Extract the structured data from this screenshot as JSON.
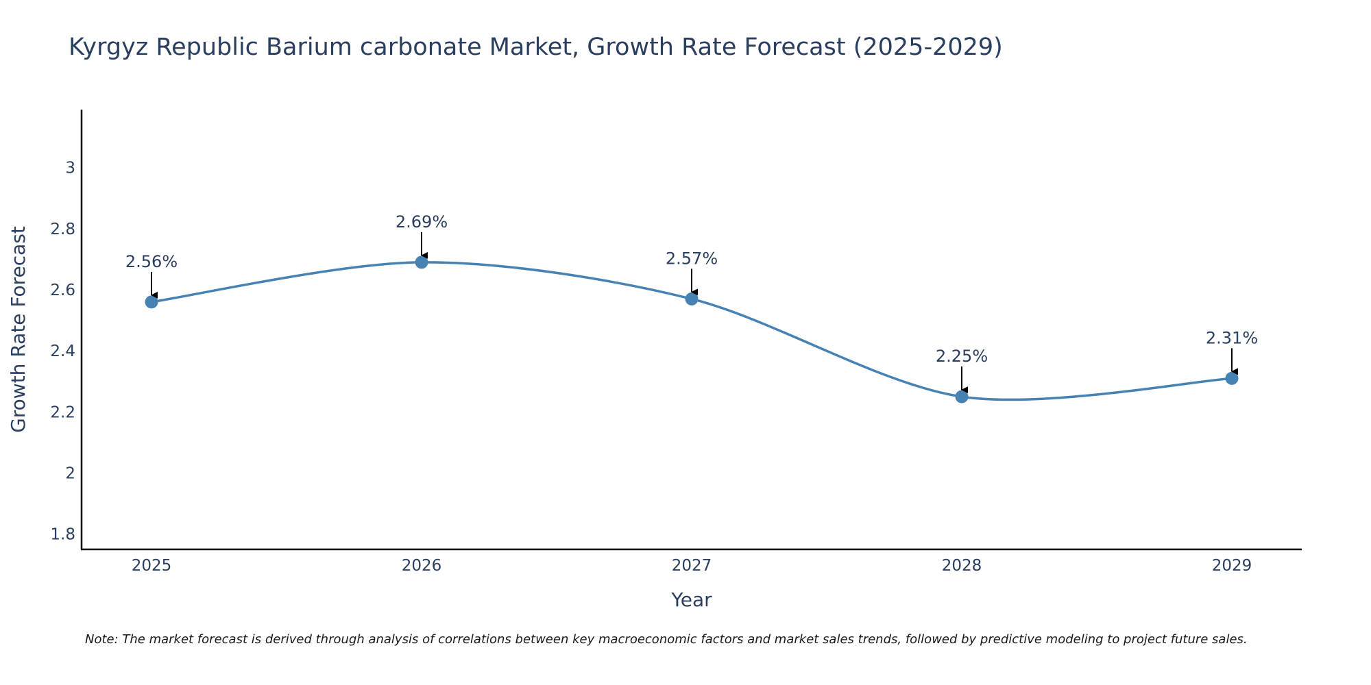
{
  "chart_data": {
    "type": "line",
    "title": "Kyrgyz Republic Barium carbonate Market, Growth Rate Forecast (2025-2029)",
    "xlabel": "Year",
    "ylabel": "Growth Rate Forecast",
    "categories": [
      "2025",
      "2026",
      "2027",
      "2028",
      "2029"
    ],
    "values": [
      2.56,
      2.69,
      2.57,
      2.25,
      2.31
    ],
    "annotations": [
      "2.56%",
      "2.69%",
      "2.57%",
      "2.25%",
      "2.31%"
    ],
    "yticks": [
      1.8,
      2.0,
      2.2,
      2.4,
      2.6,
      2.8,
      3.0
    ],
    "ytick_labels": [
      "1.8",
      "2",
      "2.2",
      "2.4",
      "2.6",
      "2.8",
      "3"
    ],
    "ylim": [
      1.75,
      3.19
    ],
    "grid": false,
    "line_color": "#4682B4",
    "note": "Note: The market forecast is derived through analysis of correlations between key macroeconomic factors and market sales trends, followed by predictive modeling to project future sales."
  }
}
